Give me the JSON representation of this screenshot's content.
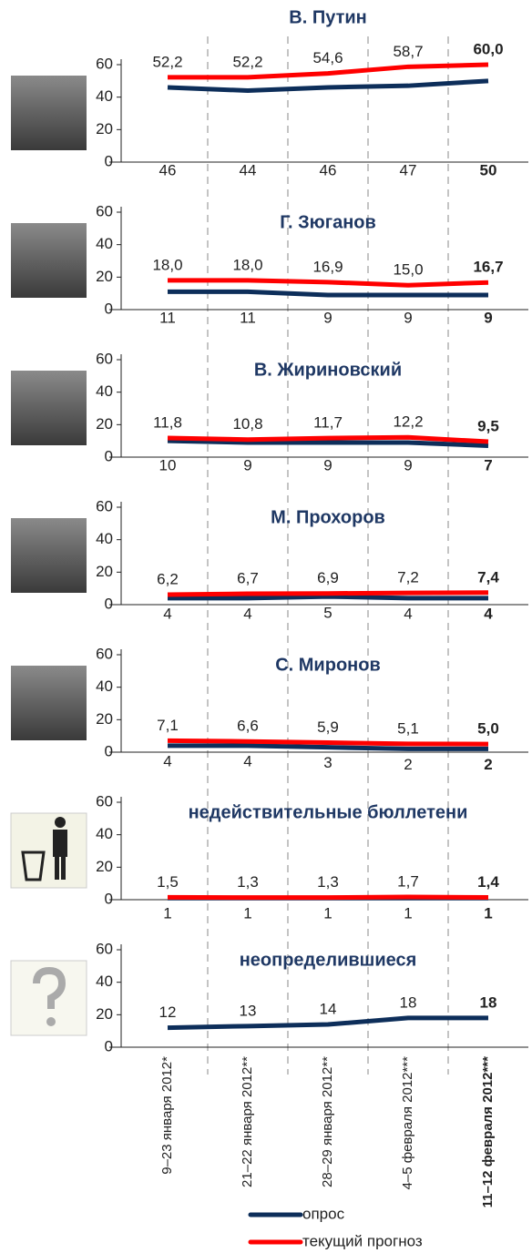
{
  "chart_data": {
    "type": "line",
    "categories": [
      "9–23 января 2012*",
      "21–22 января 2012**",
      "28–29 января 2012**",
      "4–5 февраля 2012***",
      "11–12 февраля 2012***"
    ],
    "ylim": [
      0,
      60
    ],
    "yticks": [
      0,
      20,
      40,
      60
    ],
    "series": [
      {
        "name": "опрос",
        "color": "#0d2e5a"
      },
      {
        "name": "текущий прогноз",
        "color": "#ff0000"
      }
    ],
    "panels": [
      {
        "title": "В. Путин",
        "series": [
          {
            "values": [
              46,
              44,
              46,
              47,
              50
            ]
          },
          {
            "values": [
              52.2,
              52.2,
              54.6,
              58.7,
              60.0
            ],
            "value_labels": [
              "52,2",
              "52,2",
              "54,6",
              "58,7",
              "60,0"
            ]
          }
        ]
      },
      {
        "title": "Г. Зюганов",
        "series": [
          {
            "values": [
              11,
              11,
              9,
              9,
              9
            ]
          },
          {
            "values": [
              18.0,
              18.0,
              16.9,
              15.0,
              16.7
            ],
            "value_labels": [
              "18,0",
              "18,0",
              "16,9",
              "15,0",
              "16,7"
            ]
          }
        ]
      },
      {
        "title": "В. Жириновский",
        "series": [
          {
            "values": [
              10,
              9,
              9,
              9,
              7
            ]
          },
          {
            "values": [
              11.8,
              10.8,
              11.7,
              12.2,
              9.5
            ],
            "value_labels": [
              "11,8",
              "10,8",
              "11,7",
              "12,2",
              "9,5"
            ]
          }
        ]
      },
      {
        "title": "М. Прохоров",
        "series": [
          {
            "values": [
              4,
              4,
              5,
              4,
              4
            ]
          },
          {
            "values": [
              6.2,
              6.7,
              6.9,
              7.2,
              7.4
            ],
            "value_labels": [
              "6,2",
              "6,7",
              "6,9",
              "7,2",
              "7,4"
            ]
          }
        ]
      },
      {
        "title": "С. Миронов",
        "series": [
          {
            "values": [
              4,
              4,
              3,
              2,
              2
            ]
          },
          {
            "values": [
              7.1,
              6.6,
              5.9,
              5.1,
              5.0
            ],
            "value_labels": [
              "7,1",
              "6,6",
              "5,9",
              "5,1",
              "5,0"
            ]
          }
        ]
      },
      {
        "title": "недействительные бюллетени",
        "series": [
          {
            "values": [
              1,
              1,
              1,
              1,
              1
            ]
          },
          {
            "values": [
              1.5,
              1.3,
              1.3,
              1.7,
              1.4
            ],
            "value_labels": [
              "1,5",
              "1,3",
              "1,3",
              "1,7",
              "1,4"
            ]
          }
        ]
      },
      {
        "title": "неопределившиеся",
        "series": [
          {
            "values": [
              12,
              13,
              14,
              18,
              18
            ]
          }
        ]
      }
    ]
  }
}
